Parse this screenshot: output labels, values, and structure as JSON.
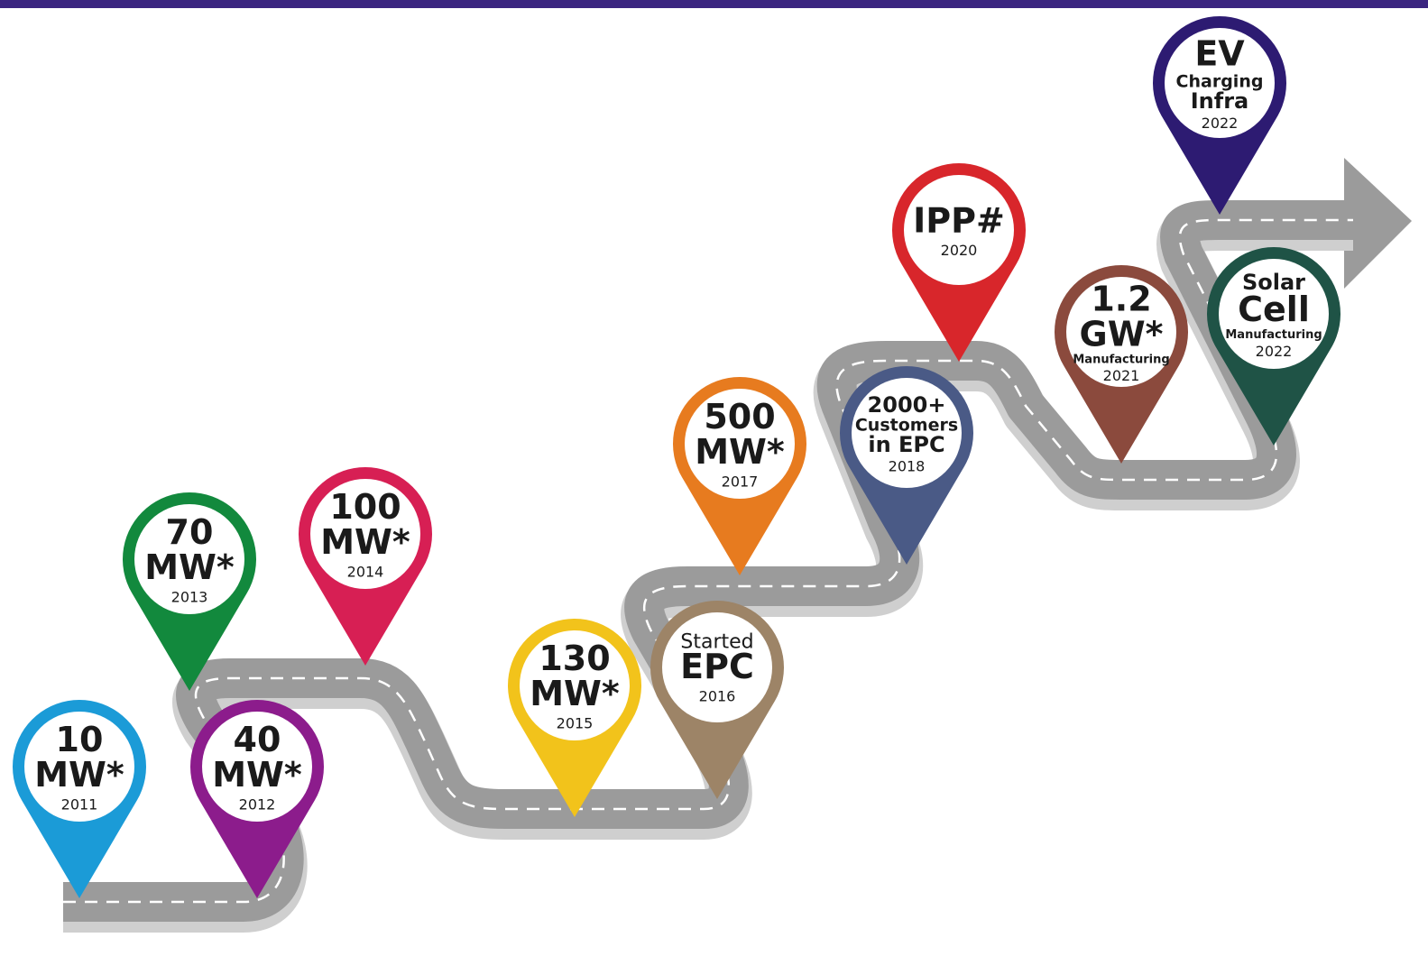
{
  "milestones": [
    {
      "lines": [
        "10",
        "MW*"
      ],
      "year": "2011",
      "color": "#1b9bd7"
    },
    {
      "lines": [
        "40",
        "MW*"
      ],
      "year": "2012",
      "color": "#8c1c8c"
    },
    {
      "lines": [
        "70",
        "MW*"
      ],
      "year": "2013",
      "color": "#12893d"
    },
    {
      "lines": [
        "100",
        "MW*"
      ],
      "year": "2014",
      "color": "#d71f54"
    },
    {
      "lines": [
        "130",
        "MW*"
      ],
      "year": "2015",
      "color": "#f2c31b"
    },
    {
      "lines": [
        "Started",
        "EPC"
      ],
      "year": "2016",
      "color": "#9d8467"
    },
    {
      "lines": [
        "500",
        "MW*"
      ],
      "year": "2017",
      "color": "#e77b1f"
    },
    {
      "lines": [
        "2000+",
        "Customers",
        "in EPC"
      ],
      "year": "2018",
      "color": "#4a5a86"
    },
    {
      "lines": [
        "IPP#"
      ],
      "year": "2020",
      "color": "#d8262b"
    },
    {
      "lines": [
        "1.2",
        "GW*",
        "Manufacturing"
      ],
      "year": "2021",
      "color": "#8b4a3d"
    },
    {
      "lines": [
        "EV",
        "Charging",
        "Infra"
      ],
      "year": "2022",
      "color": "#2d1b72"
    },
    {
      "lines": [
        "Solar",
        "Cell",
        "Manufacturing"
      ],
      "year": "2022",
      "color": "#1f5346"
    }
  ]
}
